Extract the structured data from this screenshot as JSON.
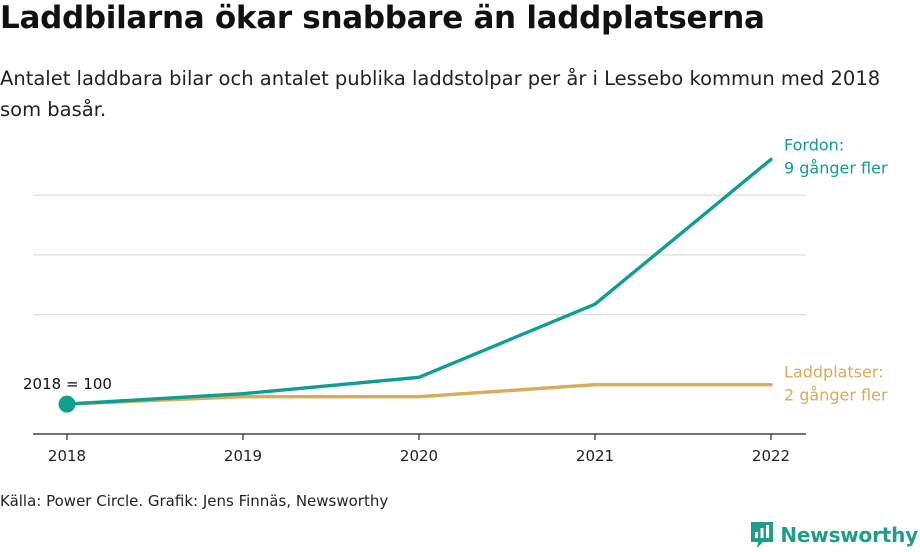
{
  "title": "Laddbilarna ökar snabbare än laddplatserna",
  "subtitle": "Antalet laddbara bilar och antalet publika laddstolpar per år i Lessebo kommun med 2018 som basår.",
  "source": "Källa: Power Circle. Grafik: Jens Finnäs, Newsworthy",
  "brand": {
    "name": "Newsworthy",
    "icon": "newsworthy-logo-icon"
  },
  "colors": {
    "vehicles": "#0f9e90",
    "chargers": "#d7ac5a",
    "grid": "#dddddd",
    "axis": "#222222",
    "brand": "#1f9c8c"
  },
  "chart_data": {
    "type": "line",
    "title": "Laddbilarna ökar snabbare än laddplatserna",
    "xlabel": "",
    "ylabel": "",
    "categories": [
      "2018",
      "2019",
      "2020",
      "2021",
      "2022"
    ],
    "ylim": [
      0,
      1000
    ],
    "y_gridlines": [
      400,
      600,
      800
    ],
    "grid": true,
    "series": [
      {
        "name": "Fordon",
        "label_lines": [
          "Fordon:",
          "9 gånger fler"
        ],
        "color": "#0f9e90",
        "values": [
          100,
          135,
          190,
          435,
          920
        ]
      },
      {
        "name": "Laddplatser",
        "label_lines": [
          "Laddplatser:",
          "2 gånger fler"
        ],
        "color": "#d7ac5a",
        "values": [
          100,
          125,
          125,
          165,
          165
        ]
      }
    ],
    "base_annotation": "2018 = 100"
  }
}
